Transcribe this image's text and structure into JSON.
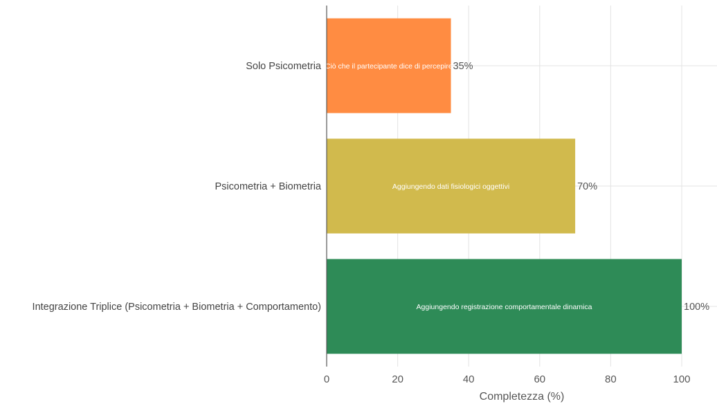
{
  "chart_data": {
    "type": "bar",
    "orientation": "horizontal",
    "categories": [
      "Solo Psicometria",
      "Psicometria + Biometria",
      "Integrazione Triplice (Psicometria + Biometria + Comportamento)"
    ],
    "values": [
      35,
      70,
      100
    ],
    "value_labels": [
      "35%",
      "70%",
      "100%"
    ],
    "bar_annotations": [
      "Ciò che il partecipante dice di percepire",
      "Aggiungendo dati fisiologici oggettivi",
      "Aggiungendo registrazione comportamentale dinamica"
    ],
    "colors": [
      "#FF8C42",
      "#D1BA4D",
      "#2E8B57"
    ],
    "xlabel": "Completezza (%)",
    "ylabel": "",
    "xlim": [
      0,
      100
    ],
    "xticks": [
      0,
      20,
      40,
      60,
      80,
      100
    ],
    "grid": true,
    "legend": false
  }
}
